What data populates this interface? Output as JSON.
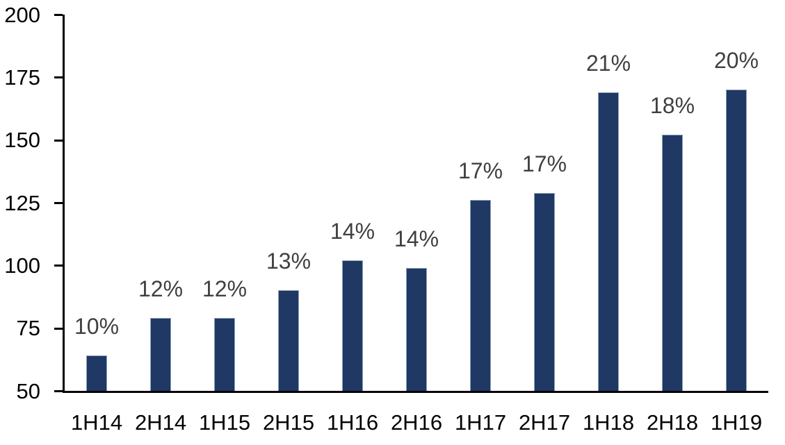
{
  "chart_data": {
    "type": "bar",
    "title": "",
    "xlabel": "",
    "ylabel": "",
    "categories": [
      "1H14",
      "2H14",
      "1H15",
      "2H15",
      "1H16",
      "2H16",
      "1H17",
      "2H17",
      "1H18",
      "2H18",
      "1H19"
    ],
    "values": [
      64,
      79,
      79,
      90,
      102,
      99,
      126,
      129,
      169,
      152,
      170
    ],
    "bar_labels": [
      "10%",
      "12%",
      "12%",
      "13%",
      "14%",
      "14%",
      "17%",
      "17%",
      "21%",
      "18%",
      "20%"
    ],
    "ylim": [
      50,
      200
    ],
    "yticks": [
      50,
      75,
      100,
      125,
      150,
      175,
      200
    ],
    "grid": false,
    "legend": null,
    "colors": {
      "background": "#FFFFFF",
      "bar_fill": "#1F3864",
      "bar_border": "#8FA2BE",
      "data_label": "#404040",
      "axis": "#000000"
    }
  }
}
